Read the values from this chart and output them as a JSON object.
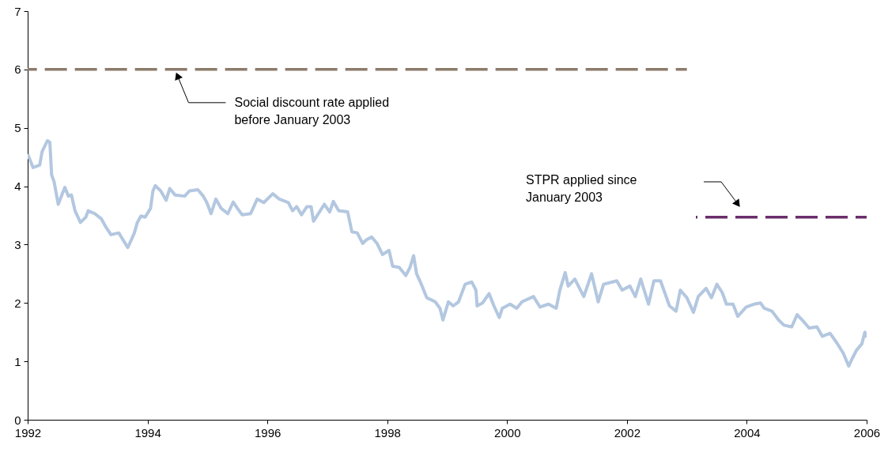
{
  "chart_data": {
    "type": "line",
    "xlim": [
      1992,
      2006
    ],
    "xticks": [
      1992,
      1994,
      1996,
      1998,
      2000,
      2002,
      2004,
      2006
    ],
    "ylim": [
      0,
      7
    ],
    "yticks": [
      0,
      1,
      2,
      3,
      4,
      5,
      6,
      7
    ],
    "grid": false,
    "series": [
      {
        "color": "#b3c7e0",
        "line_style": "solid",
        "x": [
          1992.0,
          1992.09,
          1992.2,
          1992.24,
          1992.33,
          1992.37,
          1992.4,
          1992.44,
          1992.51,
          1992.62,
          1992.68,
          1992.73,
          1992.79,
          1992.88,
          1992.97,
          1993.01,
          1993.12,
          1993.23,
          1993.3,
          1993.39,
          1993.52,
          1993.58,
          1993.67,
          1993.72,
          1993.78,
          1993.83,
          1993.89,
          1993.96,
          1994.05,
          1994.09,
          1994.13,
          1994.22,
          1994.31,
          1994.37,
          1994.46,
          1994.62,
          1994.7,
          1994.84,
          1994.93,
          1994.99,
          1995.06,
          1995.14,
          1995.23,
          1995.34,
          1995.43,
          1995.5,
          1995.58,
          1995.72,
          1995.83,
          1995.94,
          1996.09,
          1996.2,
          1996.35,
          1996.42,
          1996.49,
          1996.57,
          1996.66,
          1996.73,
          1996.77,
          1996.95,
          1997.04,
          1997.1,
          1997.19,
          1997.34,
          1997.41,
          1997.5,
          1997.59,
          1997.65,
          1997.74,
          1997.83,
          1997.92,
          1998.03,
          1998.09,
          1998.2,
          1998.31,
          1998.38,
          1998.44,
          1998.49,
          1998.57,
          1998.66,
          1998.8,
          1998.88,
          1998.93,
          1999.02,
          1999.1,
          1999.19,
          1999.3,
          1999.41,
          1999.48,
          1999.5,
          1999.59,
          1999.7,
          1999.78,
          1999.87,
          1999.92,
          2000.05,
          2000.16,
          2000.25,
          2000.44,
          2000.55,
          2000.69,
          2000.82,
          2000.88,
          2000.97,
          2001.02,
          2001.13,
          2001.28,
          2001.41,
          2001.52,
          2001.61,
          2001.83,
          2001.92,
          2002.05,
          2002.14,
          2002.23,
          2002.36,
          2002.45,
          2002.56,
          2002.71,
          2002.82,
          2002.89,
          2003.0,
          2003.11,
          2003.19,
          2003.32,
          2003.41,
          2003.5,
          2003.59,
          2003.66,
          2003.77,
          2003.85,
          2003.99,
          2004.12,
          2004.23,
          2004.29,
          2004.42,
          2004.53,
          2004.62,
          2004.75,
          2004.84,
          2004.95,
          2005.04,
          2005.17,
          2005.26,
          2005.39,
          2005.5,
          2005.61,
          2005.7,
          2005.77,
          2005.83,
          2005.92,
          2005.97,
          2006.0
        ],
        "values": [
          4.55,
          4.32,
          4.36,
          4.59,
          4.78,
          4.75,
          4.19,
          4.08,
          3.69,
          3.98,
          3.83,
          3.85,
          3.58,
          3.38,
          3.47,
          3.58,
          3.53,
          3.44,
          3.31,
          3.17,
          3.2,
          3.1,
          2.95,
          3.06,
          3.2,
          3.38,
          3.49,
          3.47,
          3.62,
          3.92,
          4.01,
          3.92,
          3.76,
          3.96,
          3.85,
          3.83,
          3.92,
          3.94,
          3.83,
          3.72,
          3.53,
          3.78,
          3.62,
          3.53,
          3.73,
          3.62,
          3.51,
          3.53,
          3.78,
          3.72,
          3.87,
          3.78,
          3.72,
          3.58,
          3.65,
          3.51,
          3.65,
          3.65,
          3.4,
          3.69,
          3.56,
          3.74,
          3.58,
          3.56,
          3.22,
          3.2,
          3.02,
          3.08,
          3.13,
          3.02,
          2.83,
          2.9,
          2.63,
          2.61,
          2.47,
          2.61,
          2.81,
          2.5,
          2.32,
          2.09,
          2.02,
          1.91,
          1.71,
          2.02,
          1.95,
          2.02,
          2.32,
          2.36,
          2.22,
          1.95,
          2.0,
          2.16,
          1.95,
          1.75,
          1.91,
          1.98,
          1.91,
          2.02,
          2.11,
          1.93,
          1.98,
          1.91,
          2.22,
          2.52,
          2.29,
          2.41,
          2.11,
          2.5,
          2.02,
          2.32,
          2.38,
          2.22,
          2.29,
          2.11,
          2.41,
          1.98,
          2.38,
          2.38,
          1.95,
          1.86,
          2.22,
          2.09,
          1.84,
          2.11,
          2.25,
          2.09,
          2.32,
          2.18,
          1.98,
          1.98,
          1.77,
          1.93,
          1.98,
          2.0,
          1.91,
          1.86,
          1.71,
          1.62,
          1.59,
          1.8,
          1.68,
          1.57,
          1.59,
          1.43,
          1.48,
          1.32,
          1.14,
          0.92,
          1.07,
          1.19,
          1.3,
          1.5,
          1.41
        ]
      },
      {
        "color": "#8c7b6b",
        "line_style": "dashed",
        "x": [
          1992,
          2003
        ],
        "values": [
          6,
          6
        ]
      },
      {
        "color": "#6b2d6b",
        "line_style": "dashed",
        "x": [
          2003.15,
          2006
        ],
        "values": [
          3.47,
          3.47
        ]
      }
    ],
    "annotations": [
      {
        "text": "Social discount rate applied\nbefore January 2003",
        "x": 1994.5,
        "y": 6
      },
      "STPR applied since\nJanuary 2003"
    ]
  }
}
